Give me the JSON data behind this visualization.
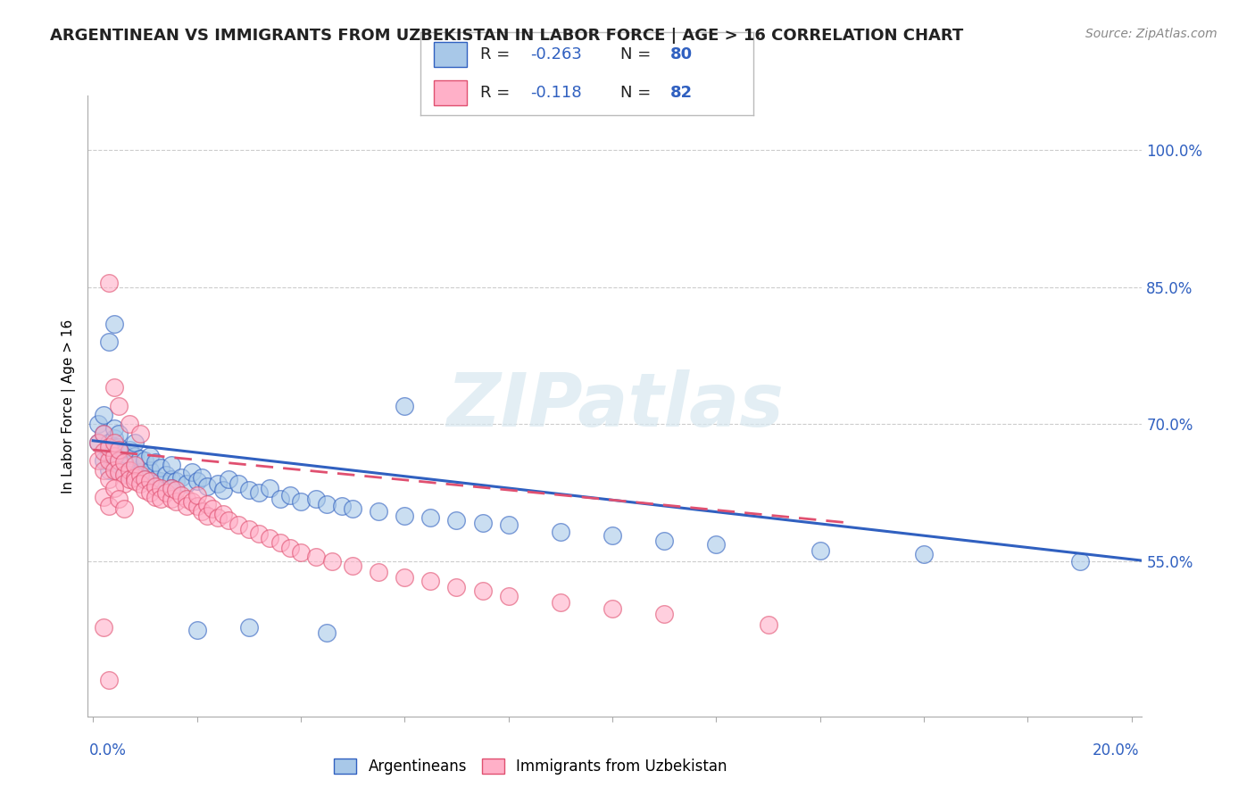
{
  "title": "ARGENTINEAN VS IMMIGRANTS FROM UZBEKISTAN IN LABOR FORCE | AGE > 16 CORRELATION CHART",
  "source": "Source: ZipAtlas.com",
  "ylabel": "In Labor Force | Age > 16",
  "ytick_vals": [
    0.55,
    0.7,
    0.85,
    1.0
  ],
  "ytick_labels": [
    "55.0%",
    "70.0%",
    "85.0%",
    "100.0%"
  ],
  "xlim": [
    -0.001,
    0.202
  ],
  "ylim": [
    0.38,
    1.06
  ],
  "color_blue": "#a8c8e8",
  "color_pink": "#ffb0c8",
  "trend_blue": "#3060c0",
  "trend_pink": "#e05070",
  "watermark": "ZIPatlas",
  "legend_label_blue": "Argentineans",
  "legend_label_pink": "Immigrants from Uzbekistan",
  "blue_intercept": 0.682,
  "blue_slope": -0.65,
  "pink_intercept": 0.672,
  "pink_slope": -0.55,
  "blue_x": [
    0.001,
    0.001,
    0.002,
    0.002,
    0.002,
    0.003,
    0.003,
    0.003,
    0.004,
    0.004,
    0.004,
    0.004,
    0.005,
    0.005,
    0.005,
    0.006,
    0.006,
    0.007,
    0.007,
    0.007,
    0.008,
    0.008,
    0.008,
    0.009,
    0.009,
    0.01,
    0.01,
    0.011,
    0.011,
    0.012,
    0.012,
    0.013,
    0.013,
    0.014,
    0.015,
    0.015,
    0.016,
    0.017,
    0.018,
    0.019,
    0.02,
    0.021,
    0.022,
    0.024,
    0.025,
    0.026,
    0.028,
    0.03,
    0.032,
    0.034,
    0.036,
    0.038,
    0.04,
    0.043,
    0.045,
    0.048,
    0.05,
    0.055,
    0.06,
    0.065,
    0.07,
    0.075,
    0.08,
    0.09,
    0.1,
    0.11,
    0.12,
    0.14,
    0.16,
    0.19,
    0.003,
    0.004,
    0.005,
    0.007,
    0.01,
    0.015,
    0.02,
    0.03,
    0.045,
    0.06
  ],
  "blue_y": [
    0.68,
    0.7,
    0.66,
    0.69,
    0.71,
    0.67,
    0.68,
    0.65,
    0.665,
    0.685,
    0.675,
    0.695,
    0.66,
    0.675,
    0.69,
    0.65,
    0.668,
    0.66,
    0.672,
    0.655,
    0.65,
    0.665,
    0.68,
    0.648,
    0.662,
    0.645,
    0.66,
    0.65,
    0.665,
    0.64,
    0.658,
    0.638,
    0.652,
    0.645,
    0.64,
    0.655,
    0.638,
    0.642,
    0.635,
    0.648,
    0.638,
    0.642,
    0.632,
    0.635,
    0.628,
    0.64,
    0.635,
    0.628,
    0.625,
    0.63,
    0.618,
    0.622,
    0.615,
    0.618,
    0.612,
    0.61,
    0.608,
    0.605,
    0.6,
    0.598,
    0.595,
    0.592,
    0.59,
    0.582,
    0.578,
    0.572,
    0.568,
    0.562,
    0.558,
    0.55,
    0.79,
    0.81,
    0.65,
    0.645,
    0.64,
    0.63,
    0.475,
    0.478,
    0.472,
    0.72
  ],
  "pink_x": [
    0.001,
    0.001,
    0.002,
    0.002,
    0.002,
    0.003,
    0.003,
    0.003,
    0.004,
    0.004,
    0.004,
    0.005,
    0.005,
    0.005,
    0.006,
    0.006,
    0.006,
    0.007,
    0.007,
    0.008,
    0.008,
    0.008,
    0.009,
    0.009,
    0.01,
    0.01,
    0.011,
    0.011,
    0.012,
    0.012,
    0.013,
    0.013,
    0.014,
    0.015,
    0.015,
    0.016,
    0.016,
    0.017,
    0.018,
    0.018,
    0.019,
    0.02,
    0.02,
    0.021,
    0.022,
    0.022,
    0.023,
    0.024,
    0.025,
    0.026,
    0.028,
    0.03,
    0.032,
    0.034,
    0.036,
    0.038,
    0.04,
    0.043,
    0.046,
    0.05,
    0.055,
    0.06,
    0.065,
    0.07,
    0.075,
    0.08,
    0.09,
    0.1,
    0.11,
    0.13,
    0.002,
    0.003,
    0.004,
    0.005,
    0.006,
    0.003,
    0.004,
    0.005,
    0.007,
    0.009,
    0.002,
    0.003
  ],
  "pink_y": [
    0.68,
    0.66,
    0.67,
    0.65,
    0.69,
    0.66,
    0.675,
    0.64,
    0.665,
    0.68,
    0.65,
    0.66,
    0.648,
    0.672,
    0.645,
    0.658,
    0.635,
    0.65,
    0.64,
    0.642,
    0.655,
    0.638,
    0.645,
    0.635,
    0.64,
    0.628,
    0.638,
    0.625,
    0.632,
    0.62,
    0.63,
    0.618,
    0.625,
    0.618,
    0.63,
    0.615,
    0.628,
    0.622,
    0.618,
    0.61,
    0.615,
    0.61,
    0.622,
    0.605,
    0.612,
    0.6,
    0.608,
    0.598,
    0.602,
    0.595,
    0.59,
    0.585,
    0.58,
    0.575,
    0.57,
    0.565,
    0.56,
    0.555,
    0.55,
    0.545,
    0.538,
    0.532,
    0.528,
    0.522,
    0.518,
    0.512,
    0.505,
    0.498,
    0.492,
    0.48,
    0.62,
    0.61,
    0.63,
    0.618,
    0.608,
    0.855,
    0.74,
    0.72,
    0.7,
    0.69,
    0.478,
    0.42
  ]
}
